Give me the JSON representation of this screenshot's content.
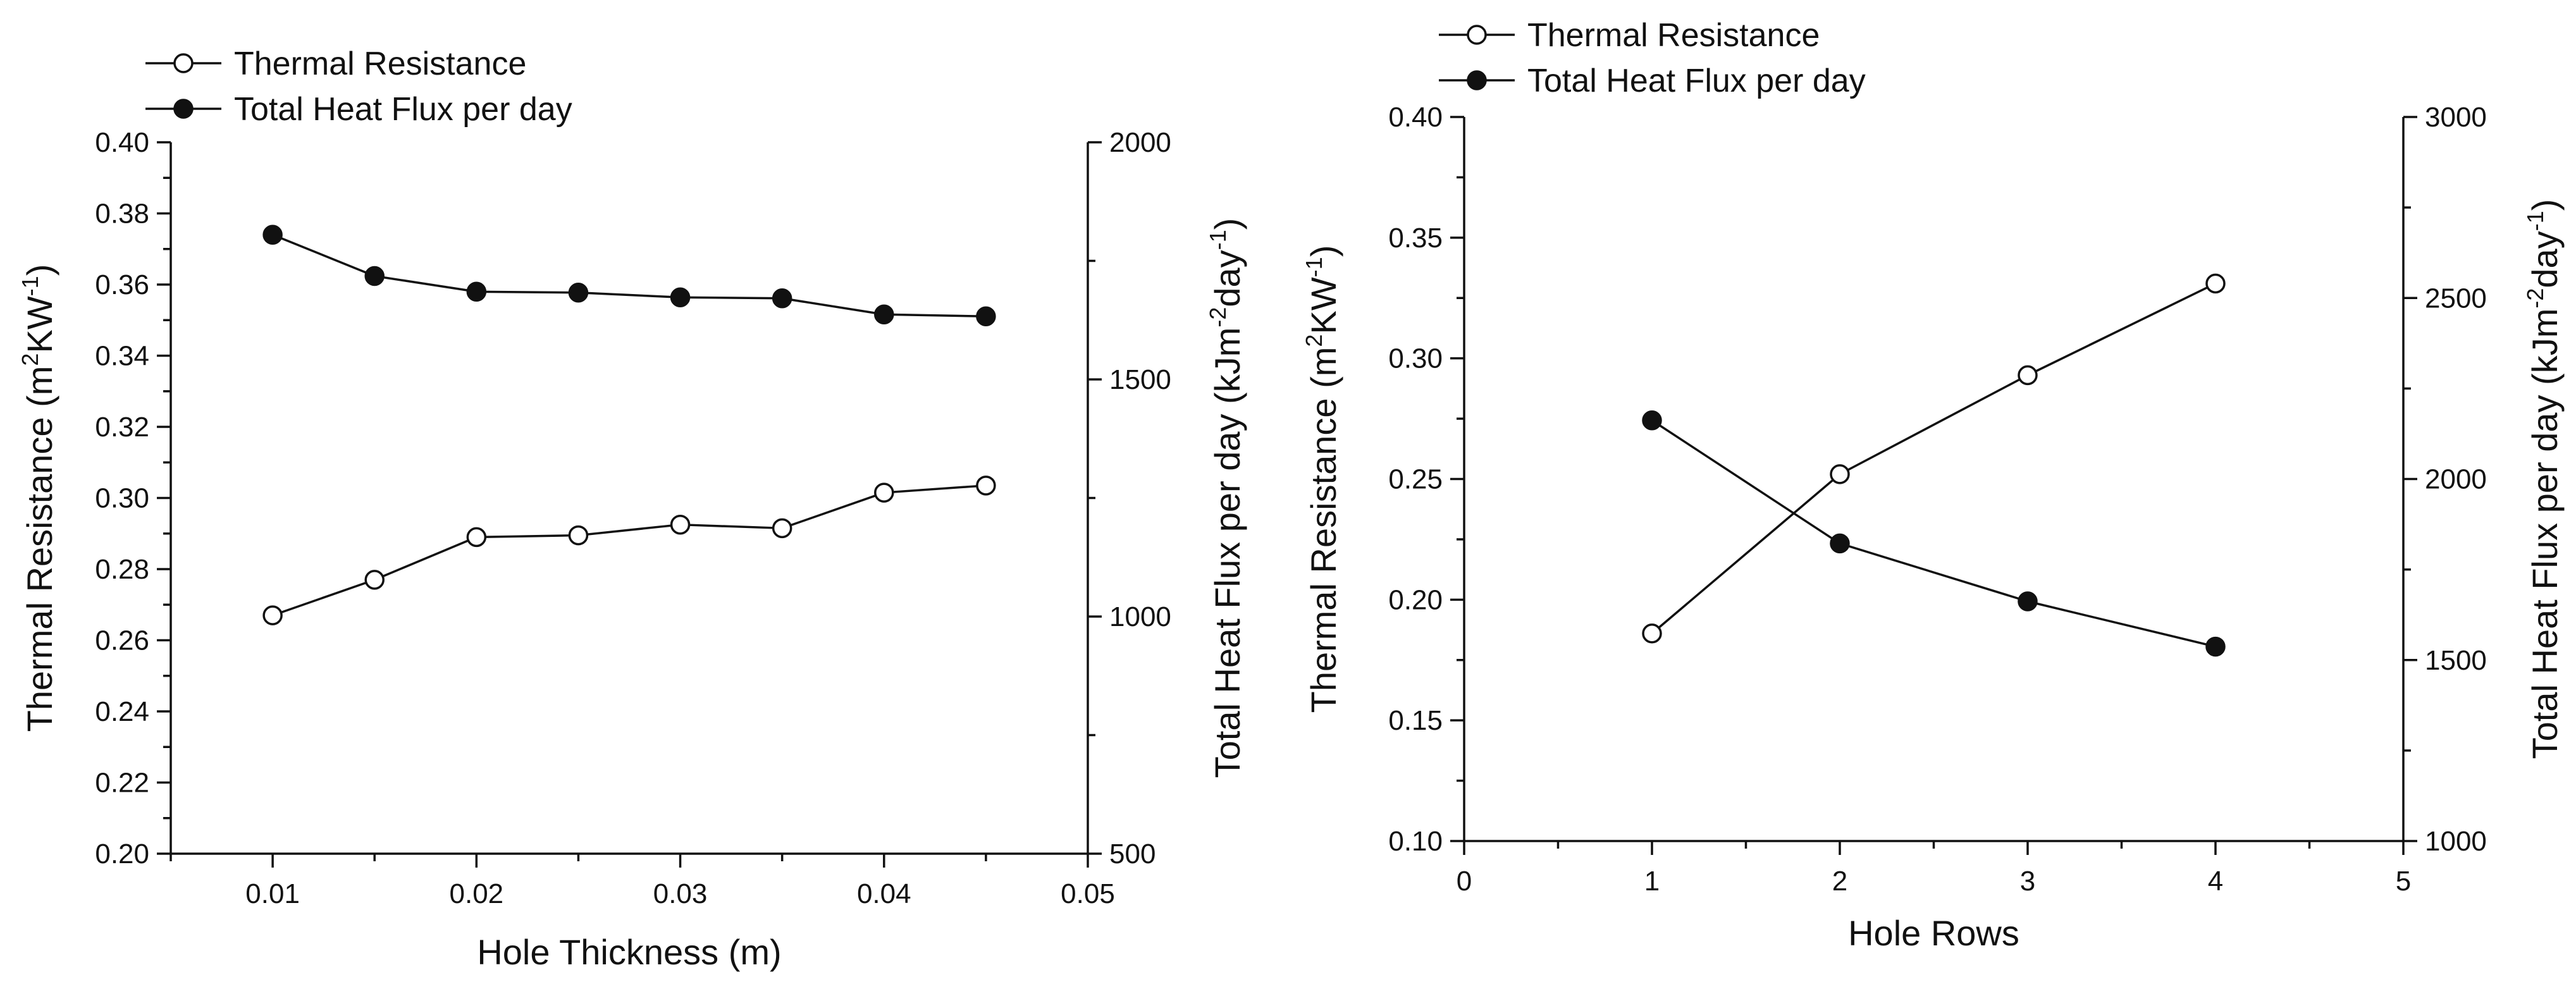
{
  "chart_data": [
    {
      "type": "line",
      "x": [
        0.01,
        0.015,
        0.02,
        0.025,
        0.03,
        0.035,
        0.04,
        0.045
      ],
      "xlabel": "Hole Thickness (m)",
      "xlim": [
        0.005,
        0.05
      ],
      "xticks": [
        0.01,
        0.02,
        0.03,
        0.04,
        0.05
      ],
      "xtick_labels": [
        "0.01",
        "0.02",
        "0.03",
        "0.04",
        "0.05"
      ],
      "y_left": {
        "label_main": "Thermal Resistance (m",
        "label_sup1": "2",
        "label_mid": "KW",
        "label_sup2": "-1",
        "label_end": ")",
        "ylim": [
          0.2,
          0.4
        ],
        "ticks": [
          0.2,
          0.22,
          0.24,
          0.26,
          0.28,
          0.3,
          0.32,
          0.34,
          0.36,
          0.38,
          0.4
        ],
        "tick_labels": [
          "0.20",
          "0.22",
          "0.24",
          "0.26",
          "0.28",
          "0.30",
          "0.32",
          "0.34",
          "0.36",
          "0.38",
          "0.40"
        ]
      },
      "y_right": {
        "label_main": "Total Heat Flux per day (kJm",
        "label_sup1": "-2",
        "label_mid": "day",
        "label_sup2": "-1",
        "label_end": ")",
        "ylim": [
          500,
          2000
        ],
        "ticks": [
          500,
          1000,
          1500,
          2000
        ],
        "tick_labels": [
          "500",
          "1000",
          "1500",
          "2000"
        ]
      },
      "series": [
        {
          "name": "Thermal Resistance",
          "axis": "left",
          "marker": "open-circle",
          "values": [
            0.267,
            0.277,
            0.289,
            0.2895,
            0.2925,
            0.2915,
            0.3015,
            0.3035
          ]
        },
        {
          "name": "Total Heat Flux per day",
          "axis": "right",
          "marker": "filled-circle",
          "values": [
            1805,
            1718,
            1685,
            1683,
            1673,
            1671,
            1637,
            1633
          ]
        }
      ],
      "legend": [
        "Thermal Resistance",
        "Total Heat Flux per day"
      ],
      "legend_position": "top-left"
    },
    {
      "type": "line",
      "x": [
        1,
        2,
        3,
        4
      ],
      "xlabel": "Hole Rows",
      "xlim": [
        0,
        5
      ],
      "xticks": [
        0,
        1,
        2,
        3,
        4,
        5
      ],
      "xtick_labels": [
        "0",
        "1",
        "2",
        "3",
        "4",
        "5"
      ],
      "y_left": {
        "label_main": "Thermal Resistance (m",
        "label_sup1": "2",
        "label_mid": "KW",
        "label_sup2": "-1",
        "label_end": ")",
        "ylim": [
          0.1,
          0.4
        ],
        "ticks": [
          0.1,
          0.15,
          0.2,
          0.25,
          0.3,
          0.35,
          0.4
        ],
        "tick_labels": [
          "0.10",
          "0.15",
          "0.20",
          "0.25",
          "0.30",
          "0.35",
          "0.40"
        ]
      },
      "y_right": {
        "label_main": "Total Heat Flux per day (kJm",
        "label_sup1": "-2",
        "label_mid": "day",
        "label_sup2": "-1",
        "label_end": ")",
        "ylim": [
          1000,
          3000
        ],
        "ticks": [
          1000,
          1500,
          2000,
          2500,
          3000
        ],
        "tick_labels": [
          "1000",
          "1500",
          "2000",
          "2500",
          "3000"
        ]
      },
      "series": [
        {
          "name": "Thermal Resistance",
          "axis": "left",
          "marker": "open-circle",
          "values": [
            0.186,
            0.252,
            0.293,
            0.331
          ]
        },
        {
          "name": "Total Heat Flux per day",
          "axis": "right",
          "marker": "filled-circle",
          "values": [
            2162,
            1822,
            1662,
            1537
          ]
        }
      ],
      "legend": [
        "Thermal Resistance",
        "Total Heat Flux per day"
      ],
      "legend_position": "top-left"
    }
  ],
  "colors": {
    "ink": "#111111",
    "background": "#ffffff",
    "open_marker_fill": "#ffffff"
  }
}
